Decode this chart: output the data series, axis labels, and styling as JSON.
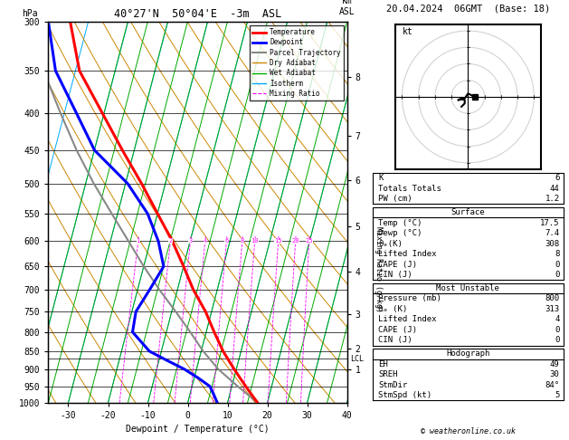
{
  "title_left": "40°27'N  50°04'E  -3m  ASL",
  "title_right": "20.04.2024  06GMT  (Base: 18)",
  "xlabel": "Dewpoint / Temperature (°C)",
  "ylabel_left": "hPa",
  "xlim": [
    -35,
    40
  ],
  "pressure_ticks": [
    300,
    350,
    400,
    450,
    500,
    550,
    600,
    650,
    700,
    750,
    800,
    850,
    900,
    950,
    1000
  ],
  "km_ticks": [
    8,
    7,
    6,
    5,
    4,
    3,
    2,
    1
  ],
  "km_pressures": [
    357,
    430,
    495,
    572,
    660,
    755,
    843,
    899
  ],
  "lcl_pressure": 870,
  "temp_profile_p": [
    1000,
    975,
    950,
    925,
    900,
    875,
    850,
    800,
    750,
    700,
    650,
    600,
    550,
    500,
    450,
    400,
    350,
    300
  ],
  "temp_profile_t": [
    17.5,
    15.5,
    13.5,
    11.5,
    9.5,
    7.5,
    5.5,
    2.0,
    -1.5,
    -6.0,
    -10.0,
    -14.5,
    -20.0,
    -26.0,
    -33.0,
    -40.5,
    -49.0,
    -54.5
  ],
  "dewp_profile_p": [
    1000,
    975,
    950,
    925,
    900,
    875,
    850,
    800,
    750,
    700,
    650,
    600,
    550,
    500,
    450,
    400,
    350,
    300
  ],
  "dewp_profile_t": [
    7.4,
    6.0,
    4.5,
    1.0,
    -3.0,
    -8.0,
    -13.0,
    -18.5,
    -19.0,
    -17.0,
    -15.0,
    -18.0,
    -22.5,
    -29.5,
    -40.0,
    -47.0,
    -55.0,
    -60.0
  ],
  "parcel_profile_p": [
    1000,
    950,
    900,
    850,
    800,
    750,
    700,
    650,
    600,
    550,
    500,
    450,
    400,
    350,
    300
  ],
  "parcel_profile_t": [
    17.5,
    11.5,
    5.5,
    0.5,
    -4.0,
    -9.0,
    -14.5,
    -20.0,
    -25.5,
    -31.5,
    -38.0,
    -44.5,
    -51.0,
    -58.0,
    -62.0
  ],
  "skew_factor": 25,
  "dry_adiabat_color": "#cc8800",
  "wet_adiabat_color": "#00aa00",
  "isotherm_color": "#00aaff",
  "mixing_ratio_color": "#ff00ff",
  "temp_color": "#ff0000",
  "dewp_color": "#0000ff",
  "parcel_color": "#888888",
  "mixing_ratios": [
    1,
    2,
    3,
    4,
    6,
    8,
    10,
    15,
    20,
    25
  ],
  "stats": {
    "K": 6,
    "Totals_Totals": 44,
    "PW_cm": 1.2,
    "Surface_Temp": 17.5,
    "Surface_Dewp": 7.4,
    "Surface_theta_e": 308,
    "Surface_Lifted_Index": 8,
    "Surface_CAPE": 0,
    "Surface_CIN": 0,
    "MU_Pressure": 800,
    "MU_theta_e": 313,
    "MU_Lifted_Index": 4,
    "MU_CAPE": 0,
    "MU_CIN": 0,
    "EH": 49,
    "SREH": 30,
    "StmDir": 84,
    "StmSpd": 5
  },
  "hodo_winds_u": [
    -2,
    -1,
    -1,
    -2,
    -3,
    -1,
    0,
    2
  ],
  "hodo_winds_v": [
    -3,
    -2,
    -1,
    -0.5,
    -1,
    -0.5,
    1,
    0
  ]
}
